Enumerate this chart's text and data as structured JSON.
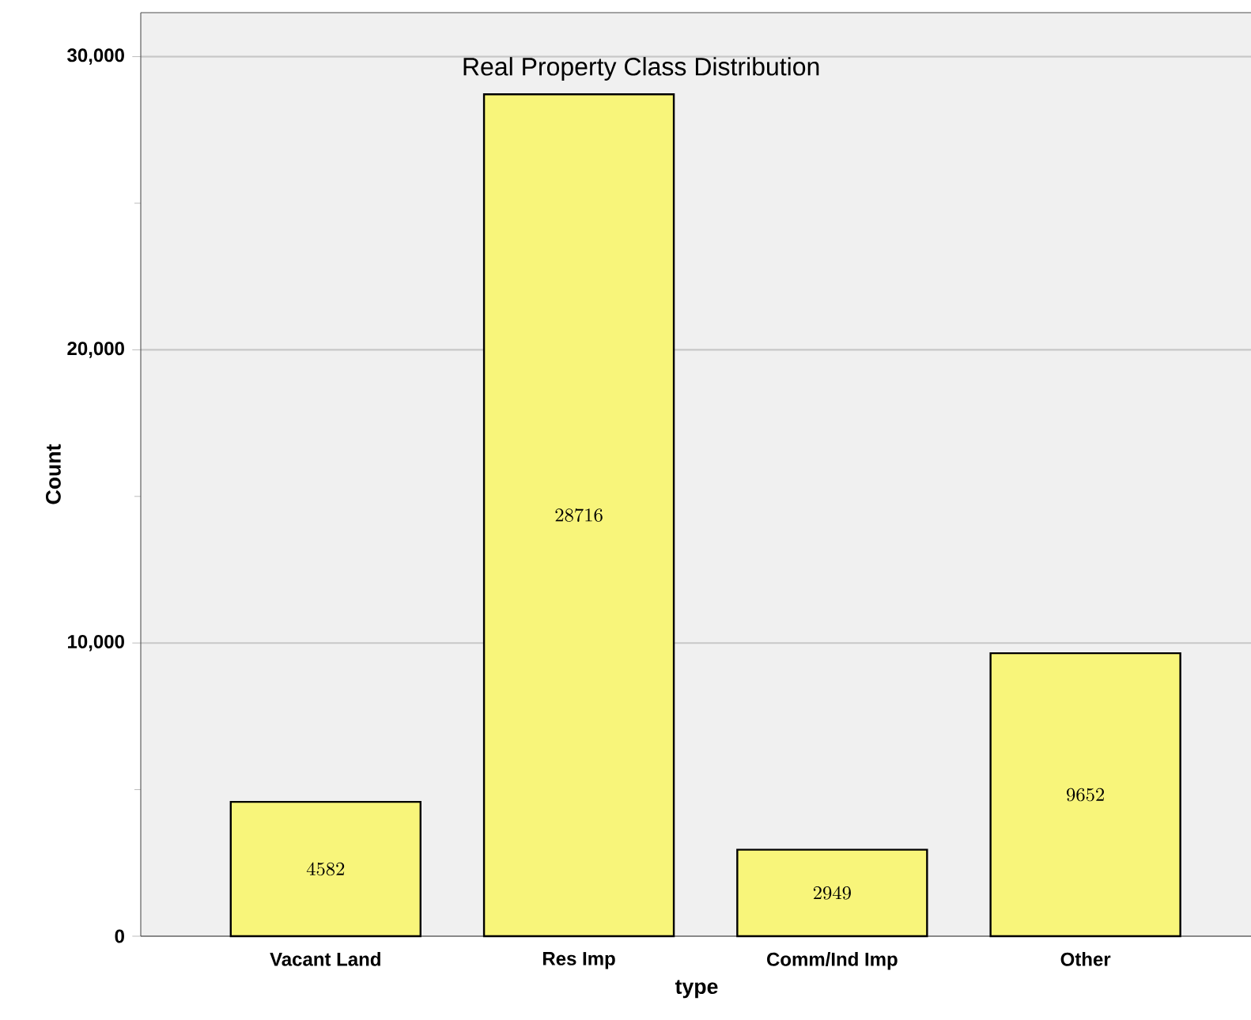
{
  "chart_data": {
    "type": "bar",
    "title": "Real Property Class Distribution",
    "xlabel": "type",
    "ylabel": "Count",
    "categories": [
      "Vacant Land",
      "Res Imp",
      "Comm/Ind Imp",
      "Other"
    ],
    "values": [
      4582,
      28716,
      2949,
      9652
    ],
    "color": "#f8f57a",
    "ylim": [
      0,
      31500
    ],
    "yticks": [
      0,
      {
        "value": 5000,
        "label": null
      },
      {
        "value": 10000,
        "label": "10,000"
      },
      {
        "value": 15000,
        "label": null
      },
      {
        "value": 20000,
        "label": "20,000"
      },
      {
        "value": 25000,
        "label": null
      },
      {
        "value": 30000,
        "label": "30,000"
      }
    ],
    "grid": "y",
    "data_labels": true
  }
}
